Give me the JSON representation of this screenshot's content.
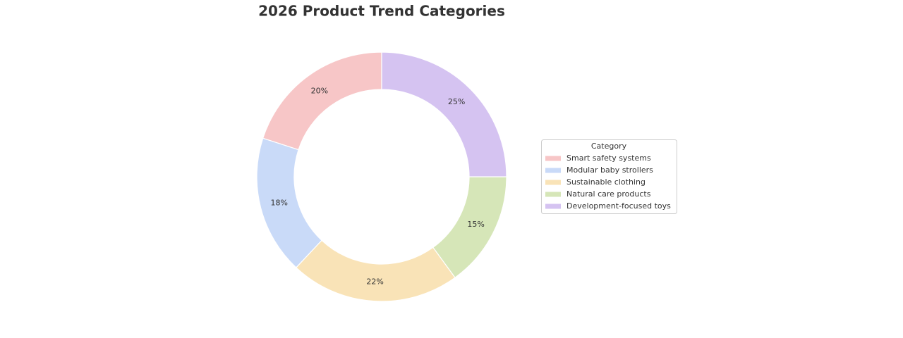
{
  "chart_data": {
    "type": "donut",
    "title": "2026 Product Trend Categories",
    "categories": [
      "Smart safety systems",
      "Modular baby strollers",
      "Sustainable clothing",
      "Natural care products",
      "Development-focused toys"
    ],
    "values": [
      20,
      18,
      22,
      15,
      25
    ],
    "value_labels": [
      "20%",
      "18%",
      "22%",
      "15%",
      "25%"
    ],
    "colors": [
      "#f7c6c7",
      "#c9daf8",
      "#f9e3b7",
      "#d6e6b8",
      "#d5c3f1"
    ],
    "legend_title": "Category",
    "legend": "right"
  }
}
